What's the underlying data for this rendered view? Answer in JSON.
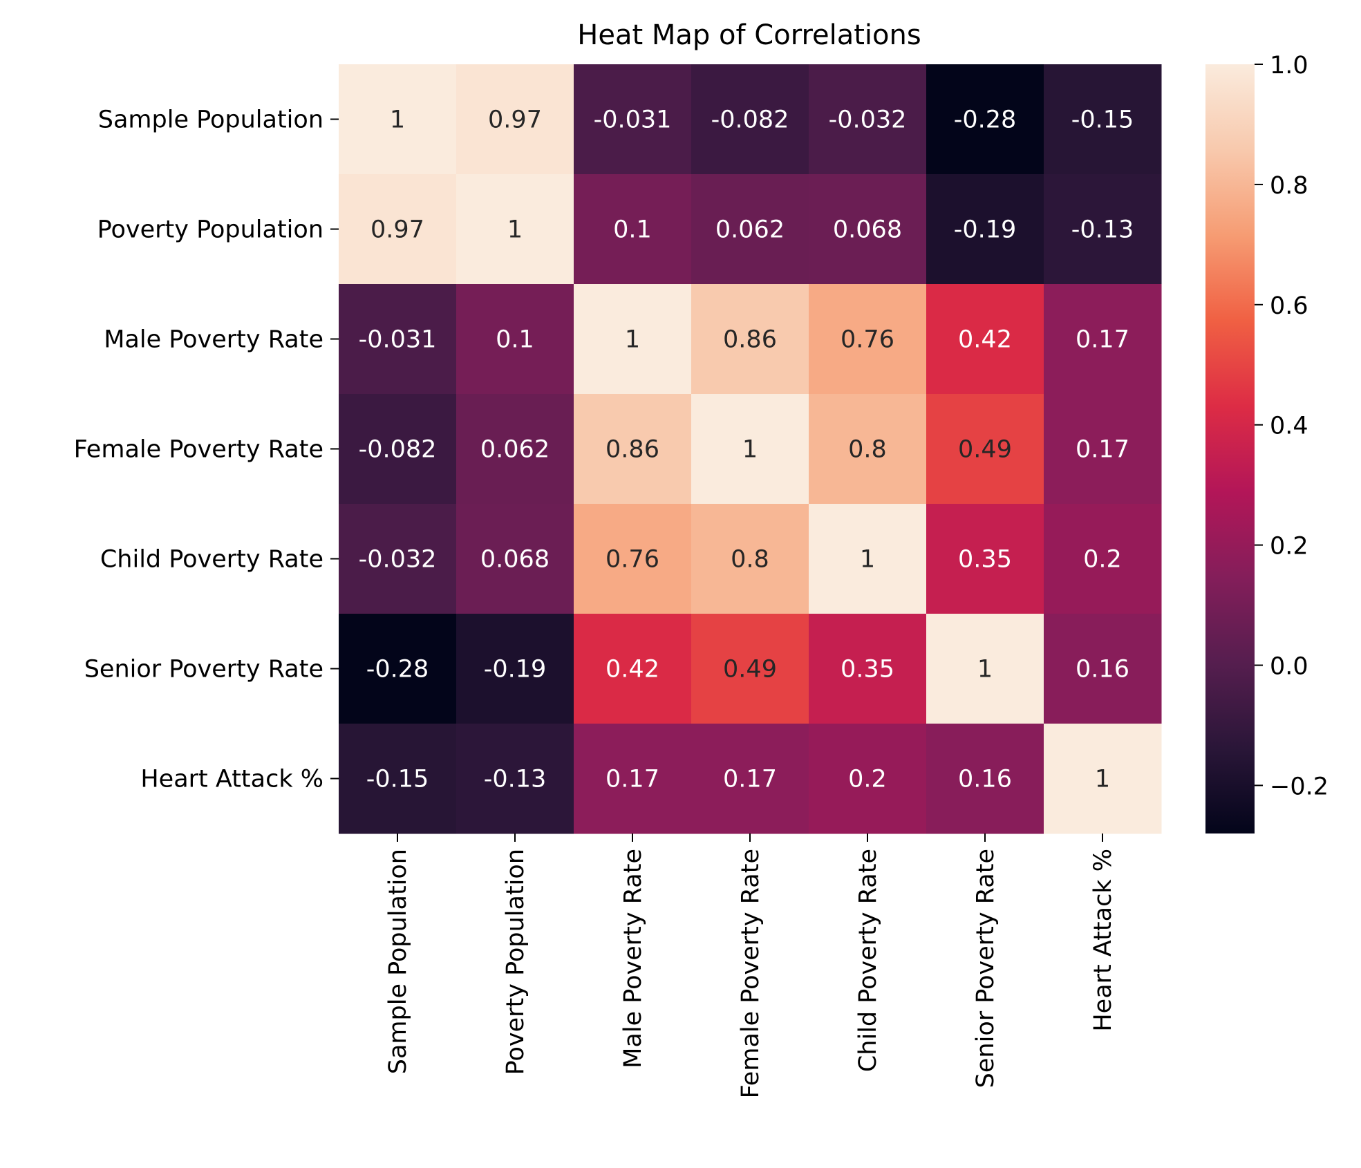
{
  "chart_data": {
    "type": "heatmap",
    "title": "Heat Map of Correlations",
    "xlabel": "",
    "ylabel": "",
    "row_labels": [
      "Sample Population",
      "Poverty Population",
      "Male Poverty Rate",
      "Female Poverty Rate",
      "Child Poverty Rate",
      "Senior Poverty Rate",
      "Heart Attack %"
    ],
    "col_labels": [
      "Sample Population",
      "Poverty Population",
      "Male Poverty Rate",
      "Female Poverty Rate",
      "Child Poverty Rate",
      "Senior Poverty Rate",
      "Heart Attack %"
    ],
    "values": [
      [
        1,
        0.97,
        -0.031,
        -0.082,
        -0.032,
        -0.28,
        -0.15
      ],
      [
        0.97,
        1,
        0.1,
        0.062,
        0.068,
        -0.19,
        -0.13
      ],
      [
        -0.031,
        0.1,
        1,
        0.86,
        0.76,
        0.42,
        0.17
      ],
      [
        -0.082,
        0.062,
        0.86,
        1,
        0.8,
        0.49,
        0.17
      ],
      [
        -0.032,
        0.068,
        0.76,
        0.8,
        1,
        0.35,
        0.2
      ],
      [
        -0.28,
        -0.19,
        0.42,
        0.49,
        0.35,
        1,
        0.16
      ],
      [
        -0.15,
        -0.13,
        0.17,
        0.17,
        0.2,
        0.16,
        1
      ]
    ],
    "annotations": [
      [
        "1",
        "0.97",
        "-0.031",
        "-0.082",
        "-0.032",
        "-0.28",
        "-0.15"
      ],
      [
        "0.97",
        "1",
        "0.1",
        "0.062",
        "0.068",
        "-0.19",
        "-0.13"
      ],
      [
        "-0.031",
        "0.1",
        "1",
        "0.86",
        "0.76",
        "0.42",
        "0.17"
      ],
      [
        "-0.082",
        "0.062",
        "0.86",
        "1",
        "0.8",
        "0.49",
        "0.17"
      ],
      [
        "-0.032",
        "0.068",
        "0.76",
        "0.8",
        "1",
        "0.35",
        "0.2"
      ],
      [
        "-0.28",
        "-0.19",
        "0.42",
        "0.49",
        "0.35",
        "1",
        "0.16"
      ],
      [
        "-0.15",
        "-0.13",
        "0.17",
        "0.17",
        "0.2",
        "0.16",
        "1"
      ]
    ],
    "colorbar": {
      "vmin": -0.28,
      "vmax": 1.0,
      "ticks": [
        -0.2,
        0.0,
        0.2,
        0.4,
        0.6,
        0.8,
        1.0
      ],
      "tick_labels": [
        "−0.2",
        "0.0",
        "0.2",
        "0.4",
        "0.6",
        "0.8",
        "1.0"
      ],
      "colormap": "rocket",
      "color_stops": [
        "#03051a",
        "#2a1638",
        "#561e4f",
        "#841e5a",
        "#b31658",
        "#dd2c45",
        "#f06043",
        "#f69c73",
        "#f8c9ad",
        "#faebdd"
      ]
    },
    "text_color_dark": "#262626",
    "text_color_light": "#ffffff",
    "grid": false,
    "legend": "colorbar-right"
  }
}
